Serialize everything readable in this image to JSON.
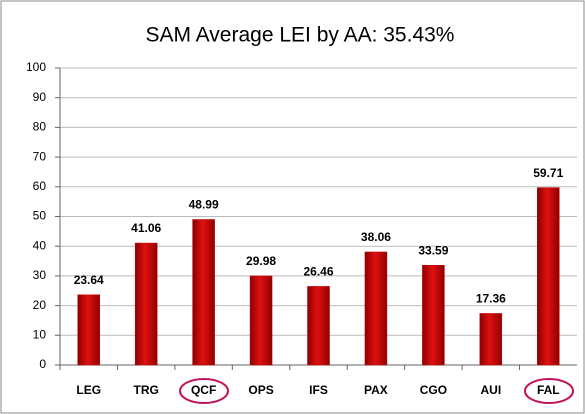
{
  "chart_data": {
    "type": "bar",
    "title": "SAM Average LEI by AA: 35.43%",
    "categories": [
      "LEG",
      "TRG",
      "QCF",
      "OPS",
      "IFS",
      "PAX",
      "CGO",
      "AUI",
      "FAL"
    ],
    "values": [
      23.64,
      41.06,
      48.99,
      29.98,
      26.46,
      38.06,
      33.59,
      17.36,
      59.71
    ],
    "color": "#c00000",
    "ylim": [
      0,
      100
    ],
    "yticks": [
      0,
      10,
      20,
      30,
      40,
      50,
      60,
      70,
      80,
      90,
      100
    ],
    "grid": true
  }
}
